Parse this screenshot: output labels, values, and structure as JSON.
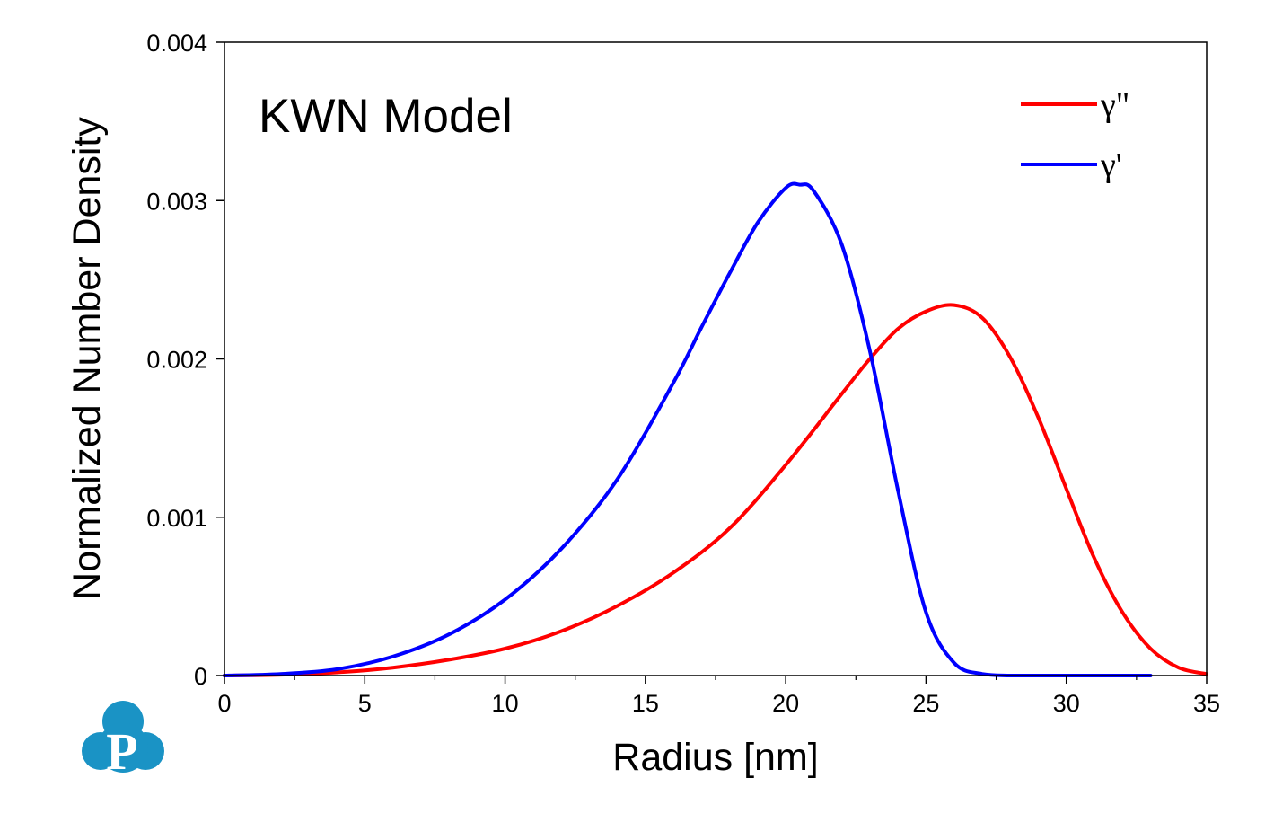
{
  "chart_data": {
    "type": "line",
    "title": "KWN Model",
    "xlabel": "Radius [nm]",
    "ylabel": "Normalized Number Density",
    "xlim": [
      0,
      35
    ],
    "ylim": [
      0,
      0.004
    ],
    "xticks": [
      0,
      5,
      10,
      15,
      20,
      25,
      30,
      35
    ],
    "yticks": [
      0,
      0.001,
      0.002,
      0.003,
      0.004
    ],
    "xtick_labels": [
      "0",
      "5",
      "10",
      "15",
      "20",
      "25",
      "30",
      "35"
    ],
    "ytick_labels": [
      "0",
      "0.001",
      "0.002",
      "0.003",
      "0.004"
    ],
    "grid": false,
    "legend_position": "top-right",
    "series": [
      {
        "name": "γ\"",
        "color": "#ff0000",
        "x": [
          0,
          2,
          4,
          6,
          8,
          10,
          12,
          14,
          16,
          18,
          20,
          22,
          23,
          24,
          25,
          26,
          27,
          28,
          29,
          30,
          31,
          32,
          33,
          34,
          35
        ],
        "y": [
          0,
          5e-06,
          2e-05,
          5e-05,
          0.0001,
          0.00017,
          0.00028,
          0.00044,
          0.00065,
          0.00093,
          0.00133,
          0.00178,
          0.002,
          0.00219,
          0.0023,
          0.00234,
          0.00226,
          0.00201,
          0.00163,
          0.00118,
          0.00074,
          0.0004,
          0.00017,
          5e-05,
          1e-05
        ]
      },
      {
        "name": "γ'",
        "color": "#0000ff",
        "x": [
          0,
          2,
          4,
          6,
          8,
          10,
          12,
          14,
          16,
          17,
          18,
          19,
          20,
          20.5,
          21,
          22,
          23,
          24,
          25,
          26,
          27,
          28,
          30,
          33
        ],
        "y": [
          0,
          1e-05,
          4e-05,
          0.00012,
          0.00026,
          0.00048,
          0.0008,
          0.00124,
          0.00185,
          0.0022,
          0.00254,
          0.00286,
          0.00308,
          0.0031,
          0.00306,
          0.00272,
          0.00205,
          0.00117,
          0.0004,
          8e-05,
          1e-05,
          0,
          0,
          0
        ]
      }
    ]
  },
  "logo": {
    "letter": "P",
    "color": "#1a93c5"
  }
}
